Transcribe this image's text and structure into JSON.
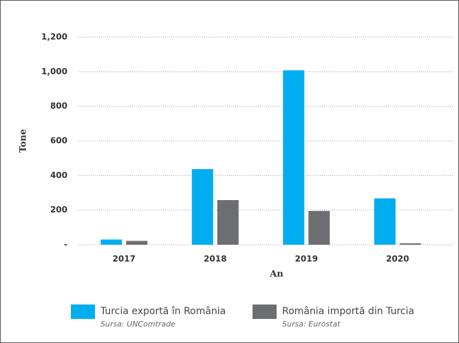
{
  "chart_data": {
    "type": "bar",
    "categories": [
      "2017",
      "2018",
      "2019",
      "2020"
    ],
    "series": [
      {
        "name": "Turcia exportă în România",
        "source": "Sursa: UNComtrade",
        "color": "#00aeef",
        "values": [
          30,
          437,
          1008,
          268
        ]
      },
      {
        "name": "România importă din Turcia",
        "source": "Sursa: Eurostat",
        "color": "#6d6e71",
        "values": [
          22,
          258,
          195,
          8
        ]
      }
    ],
    "xlabel": "An",
    "ylabel": "Tone",
    "ylim": [
      0,
      1200
    ],
    "yticks": [
      {
        "value": 0,
        "label": "-"
      },
      200,
      400,
      600,
      800,
      {
        "value": 1000,
        "label": "1,000"
      },
      {
        "value": 1200,
        "label": "1,200"
      }
    ],
    "grid": true
  }
}
